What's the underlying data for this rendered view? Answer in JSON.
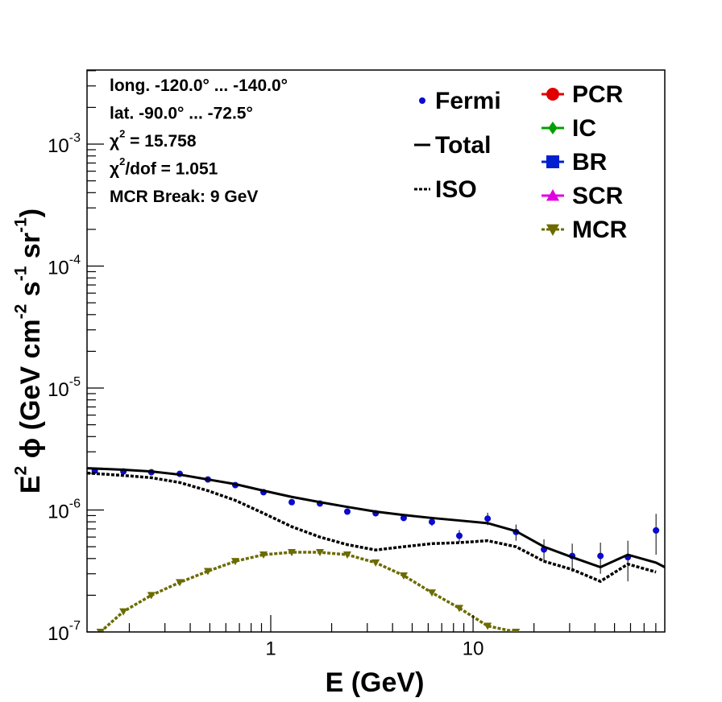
{
  "chart_data": {
    "type": "line",
    "xlog": true,
    "ylog": true,
    "x_label": "E (GeV)",
    "y_label": [
      {
        "text": "E"
      },
      {
        "sup": "2"
      },
      {
        "text": "  ϕ (GeV cm"
      },
      {
        "sup": "-2"
      },
      {
        "text": " s"
      },
      {
        "sup": "-1"
      },
      {
        "text": " sr"
      },
      {
        "sup": "-1"
      },
      {
        "text": ")"
      }
    ],
    "xlim": [
      0.1236,
      88.6
    ],
    "ylim": [
      1e-07,
      0.00405
    ],
    "xticks": [
      1,
      10
    ],
    "xminor_ticks": [
      0.2,
      0.3,
      0.4,
      0.5,
      0.6,
      0.7,
      0.8,
      0.9,
      2,
      3,
      4,
      5,
      6,
      7,
      8,
      9,
      20,
      30,
      40,
      50,
      60,
      70,
      80
    ],
    "yticks": [
      {
        "value": 1e-07,
        "label": "10",
        "exp": "-7"
      },
      {
        "value": 1e-06,
        "label": "10",
        "exp": "-6"
      },
      {
        "value": 1e-05,
        "label": "10",
        "exp": "-5"
      },
      {
        "value": 0.0001,
        "label": "10",
        "exp": "-4"
      },
      {
        "value": 0.001,
        "label": "10",
        "exp": "-3"
      }
    ],
    "yminor_ticks": [
      2e-07,
      3e-07,
      4e-07,
      5e-07,
      6e-07,
      7e-07,
      8e-07,
      9e-07,
      2e-06,
      3e-06,
      4e-06,
      5e-06,
      6e-06,
      7e-06,
      8e-06,
      9e-06,
      2e-05,
      3e-05,
      4e-05,
      5e-05,
      6e-05,
      7e-05,
      8e-05,
      9e-05,
      0.0002,
      0.0003,
      0.0004,
      0.0005,
      0.0006,
      0.0007,
      0.0008,
      0.0009,
      0.002,
      0.003,
      0.004
    ],
    "annotations": [
      [
        {
          "text": "long. -120.0° ... -140.0°"
        }
      ],
      [
        {
          "text": "lat. -90.0° ... -72.5°"
        }
      ],
      [
        {
          "text": "χ"
        },
        {
          "sup": "2"
        },
        {
          "text": " = 15.758"
        }
      ],
      [
        {
          "text": "χ"
        },
        {
          "sup": "2"
        },
        {
          "text": "/dof = 1.051"
        }
      ],
      [
        {
          "text": "MCR Break:  9 GeV"
        }
      ]
    ],
    "series": [
      {
        "name": "Fermi",
        "color": "#0a0ad0",
        "marker": "circle",
        "line": "none",
        "x": [
          0.135,
          0.187,
          0.257,
          0.355,
          0.489,
          0.668,
          0.921,
          1.27,
          1.75,
          2.39,
          3.3,
          4.54,
          6.26,
          8.55,
          11.8,
          16.3,
          22.4,
          30.9,
          42.6,
          58.2,
          80.2
        ],
        "values": [
          2.1e-06,
          2.07e-06,
          2.04e-06,
          1.98e-06,
          1.78e-06,
          1.6e-06,
          1.4e-06,
          1.16e-06,
          1.13e-06,
          9.7e-07,
          9.4e-07,
          8.6e-07,
          8e-07,
          6.15e-07,
          8.5e-07,
          6.6e-07,
          4.75e-07,
          4.2e-07,
          4.2e-07,
          4.1e-07,
          6.8e-07
        ],
        "errors": [
          3e-08,
          3e-08,
          3e-08,
          3e-08,
          3e-08,
          3e-08,
          3e-08,
          3e-08,
          3e-08,
          3e-08,
          4e-08,
          5e-08,
          6e-08,
          7e-08,
          1e-07,
          1e-07,
          1e-07,
          1.1e-07,
          1.2e-07,
          1.5e-07,
          2.5e-07
        ]
      },
      {
        "name": "Total",
        "color": "#000000",
        "line": "solid",
        "x": [
          0.1236,
          0.187,
          0.257,
          0.355,
          0.489,
          0.668,
          0.921,
          1.27,
          1.75,
          2.39,
          3.3,
          4.54,
          6.26,
          8.55,
          11.8,
          16.3,
          22.4,
          30.9,
          42.6,
          58.2,
          80.2,
          88.6
        ],
        "values": [
          2.2e-06,
          2.14e-06,
          2.07e-06,
          1.95e-06,
          1.78e-06,
          1.63e-06,
          1.44e-06,
          1.28e-06,
          1.16e-06,
          1.06e-06,
          9.7e-07,
          9.1e-07,
          8.6e-07,
          8.2e-07,
          7.8e-07,
          6.7e-07,
          5e-07,
          4.1e-07,
          3.4e-07,
          4.3e-07,
          3.7e-07,
          3.4e-07
        ]
      },
      {
        "name": "ISO",
        "color": "#000000",
        "line": "dotted",
        "x": [
          0.1236,
          0.187,
          0.257,
          0.355,
          0.489,
          0.668,
          0.921,
          1.27,
          1.75,
          2.39,
          3.3,
          4.54,
          6.26,
          8.55,
          11.8,
          16.3,
          22.4,
          30.9,
          42.6,
          58.2,
          80.2
        ],
        "values": [
          2.01e-06,
          1.92e-06,
          1.84e-06,
          1.68e-06,
          1.44e-06,
          1.2e-06,
          9.4e-07,
          7.3e-07,
          6e-07,
          5.2e-07,
          4.7e-07,
          5e-07,
          5.3e-07,
          5.4e-07,
          5.6e-07,
          5e-07,
          3.8e-07,
          3.25e-07,
          2.6e-07,
          3.6e-07,
          3.1e-07
        ]
      },
      {
        "name": "PCR",
        "color": "#e00000",
        "marker": "circle",
        "line": "solid"
      },
      {
        "name": "IC",
        "color": "#00a000",
        "marker": "diamond",
        "line": "solid"
      },
      {
        "name": "BR",
        "color": "#0020d0",
        "marker": "square",
        "line": "solid"
      },
      {
        "name": "SCR",
        "color": "#e000e0",
        "marker": "triangle",
        "line": "solid"
      },
      {
        "name": "MCR",
        "color": "#6b6b00",
        "marker": "triangle-down",
        "line": "dotted",
        "x": [
          0.144,
          0.187,
          0.257,
          0.355,
          0.489,
          0.668,
          0.921,
          1.27,
          1.75,
          2.39,
          3.3,
          4.54,
          6.26,
          8.55,
          11.8,
          16.3
        ],
        "values": [
          1e-07,
          1.47e-07,
          2e-07,
          2.55e-07,
          3.15e-07,
          3.8e-07,
          4.3e-07,
          4.5e-07,
          4.5e-07,
          4.3e-07,
          3.7e-07,
          2.9e-07,
          2.1e-07,
          1.57e-07,
          1.12e-07,
          1e-07
        ]
      }
    ]
  }
}
